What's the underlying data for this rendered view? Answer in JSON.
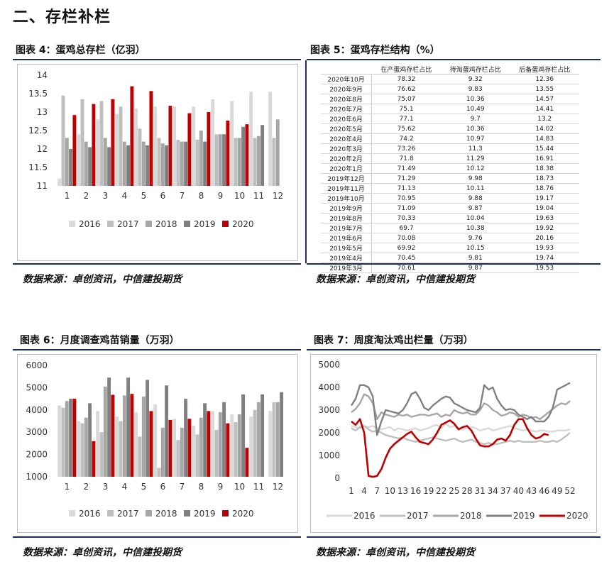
{
  "section_title": "二、存栏补栏",
  "figures": {
    "fig4": {
      "title": "图表 4：蛋鸡总存栏（亿羽）",
      "source": "数据来源：卓创资讯，中信建投期货"
    },
    "fig5": {
      "title": "图表 5：蛋鸡存栏结构（%）",
      "source": "数据来源：卓创资讯，中信建投期货"
    },
    "fig6": {
      "title": "图表 6：月度调查鸡苗销量（万羽）",
      "source": "数据来源：卓创资讯，中信建投期货"
    },
    "fig7": {
      "title": "图表 7：周度淘汰鸡出栏量（万羽）",
      "source": "数据来源：卓创资讯，中信建投期货"
    }
  },
  "colors": {
    "c2016": "#d9d9d9",
    "c2017": "#bfbfbf",
    "c2018": "#a6a6a6",
    "c2019": "#808080",
    "c2020": "#c00000",
    "rule": "#1f2d5a"
  },
  "chart_data": [
    {
      "id": "fig4",
      "type": "bar",
      "categories": [
        "1",
        "2",
        "3",
        "4",
        "5",
        "6",
        "7",
        "8",
        "9",
        "10",
        "11",
        "12"
      ],
      "ylim": [
        11,
        14
      ],
      "yticks": [
        "11",
        "11.5",
        "12",
        "12.5",
        "13",
        "13.5",
        "14"
      ],
      "legend": "bottom",
      "series": [
        {
          "name": "2016",
          "values": [
            11.2,
            12.4,
            12.8,
            12.95,
            13.1,
            13.15,
            13.15,
            13.15,
            13.35,
            13.3,
            13.55,
            13.55
          ]
        },
        {
          "name": "2017",
          "values": [
            13.45,
            13.35,
            13.3,
            13.15,
            12.55,
            12.3,
            12.25,
            12.25,
            12.4,
            12.3,
            12.3,
            12.3
          ]
        },
        {
          "name": "2018",
          "values": [
            12.3,
            12.2,
            12.3,
            12.2,
            12.2,
            12.15,
            12.2,
            12.5,
            12.4,
            12.3,
            12.35,
            12.8
          ]
        },
        {
          "name": "2019",
          "values": [
            12.0,
            12.05,
            12.05,
            12.1,
            12.1,
            12.1,
            12.2,
            12.2,
            12.4,
            12.6,
            12.65,
            null
          ]
        },
        {
          "name": "2020",
          "values": [
            12.92,
            13.22,
            13.35,
            13.7,
            13.57,
            13.17,
            12.97,
            13.0,
            12.77,
            12.67,
            null,
            null
          ]
        }
      ]
    },
    {
      "id": "fig5",
      "type": "table",
      "columns": [
        "",
        "在产蛋鸡存栏占比",
        "待淘蛋鸡存栏占比",
        "后备蛋鸡存栏占比"
      ],
      "rows": [
        [
          "2020年10月",
          "78.32",
          "9.32",
          "12.36"
        ],
        [
          "2020年9月",
          "76.62",
          "9.83",
          "13.55"
        ],
        [
          "2020年8月",
          "75.07",
          "10.36",
          "14.57"
        ],
        [
          "2020年7月",
          "75.1",
          "10.49",
          "14.41"
        ],
        [
          "2020年6月",
          "77.1",
          "9.7",
          "13.2"
        ],
        [
          "2020年5月",
          "75.62",
          "10.36",
          "14.02"
        ],
        [
          "2020年4月",
          "74.2",
          "10.97",
          "14.83"
        ],
        [
          "2020年3月",
          "73.26",
          "11.3",
          "15.44"
        ],
        [
          "2020年2月",
          "71.8",
          "11.29",
          "16.91"
        ],
        [
          "2020年1月",
          "71.49",
          "10.12",
          "18.38"
        ],
        [
          "2019年12月",
          "71.29",
          "9.98",
          "18.73"
        ],
        [
          "2019年11月",
          "71.13",
          "10.11",
          "18.76"
        ],
        [
          "2019年10月",
          "70.95",
          "9.88",
          "19.17"
        ],
        [
          "2019年9月",
          "71.09",
          "9.87",
          "19.04"
        ],
        [
          "2019年8月",
          "70.33",
          "10.04",
          "19.63"
        ],
        [
          "2019年7月",
          "69.7",
          "10.38",
          "19.92"
        ],
        [
          "2019年6月",
          "70.08",
          "9.76",
          "20.16"
        ],
        [
          "2019年5月",
          "69.92",
          "10.15",
          "19.93"
        ],
        [
          "2019年4月",
          "70.45",
          "9.81",
          "19.74"
        ],
        [
          "2019年3月",
          "70.61",
          "9.87",
          "19.53"
        ]
      ]
    },
    {
      "id": "fig6",
      "type": "bar",
      "categories": [
        "1",
        "2",
        "3",
        "4",
        "5",
        "6",
        "7",
        "8",
        "9",
        "10",
        "11",
        "12"
      ],
      "ylim": [
        1000,
        6000
      ],
      "yticks": [
        "1000",
        "2000",
        "3000",
        "4000",
        "5000",
        "6000"
      ],
      "legend": "bottom",
      "series": [
        {
          "name": "2016",
          "values": [
            4200,
            3500,
            3950,
            3700,
            3900,
            4250,
            3600,
            3300,
            3950,
            3800,
            3700,
            3950
          ]
        },
        {
          "name": "2017",
          "values": [
            4100,
            3400,
            3000,
            3500,
            2800,
            1400,
            2650,
            2900,
            3100,
            3450,
            4000,
            4350
          ]
        },
        {
          "name": "2018",
          "values": [
            4400,
            3650,
            5050,
            4650,
            4600,
            3200,
            3200,
            3650,
            3900,
            3800,
            4350,
            4350
          ]
        },
        {
          "name": "2019",
          "values": [
            4500,
            4300,
            5450,
            5450,
            5350,
            5100,
            4500,
            4300,
            4350,
            4700,
            4700,
            4800
          ]
        },
        {
          "name": "2020",
          "values": [
            4500,
            2600,
            4680,
            4720,
            3950,
            3550,
            3600,
            3950,
            3400,
            2300,
            null,
            null
          ]
        }
      ]
    },
    {
      "id": "fig7",
      "type": "line",
      "xticks": [
        "1",
        "4",
        "7",
        "10",
        "13",
        "16",
        "19",
        "22",
        "25",
        "28",
        "31",
        "34",
        "37",
        "40",
        "43",
        "46",
        "49",
        "52"
      ],
      "ylim": [
        0,
        5000
      ],
      "yticks": [
        "0",
        "1000",
        "2000",
        "3000",
        "4000",
        "5000"
      ],
      "legend": "bottom",
      "series": [
        {
          "name": "2016",
          "values": [
            2300,
            2250,
            2200,
            2300,
            2250,
            2300,
            2200,
            2150,
            2200,
            2250,
            2100,
            2200,
            2150,
            2100,
            2150,
            2200,
            2100,
            2150,
            2200,
            2300,
            2350,
            2200,
            2400,
            2250,
            2300,
            2200,
            2150,
            2200,
            2250,
            2200,
            2100,
            2150,
            2200,
            2100,
            2150,
            2200,
            2250,
            2300,
            2200,
            2150,
            2100,
            2150,
            2100,
            2050,
            2100,
            2100,
            2050,
            2050,
            2100,
            2100,
            2100,
            2150
          ]
        },
        {
          "name": "2017",
          "values": [
            2200,
            2100,
            2250,
            2300,
            2150,
            2050,
            2100,
            2000,
            1900,
            1850,
            1800,
            1750,
            1800,
            1700,
            1650,
            1600,
            1650,
            1700,
            1750,
            1800,
            1750,
            1700,
            1650,
            1700,
            1750,
            1650,
            1600,
            1650,
            1700,
            1600,
            1550,
            1500,
            1550,
            1500,
            1500,
            1550,
            1600,
            1650,
            1600,
            1650,
            1600,
            1600,
            1600,
            1600,
            1650,
            1600,
            1600,
            1650,
            1600,
            1700,
            1850,
            2000
          ]
        },
        {
          "name": "2018",
          "values": [
            2900,
            3050,
            3300,
            3700,
            3600,
            3300,
            2600,
            2900,
            2800,
            2750,
            2700,
            2800,
            2750,
            2800,
            2700,
            2750,
            2800,
            2800,
            2750,
            2800,
            2850,
            2700,
            2800,
            2750,
            3000,
            2900,
            2850,
            2900,
            2800,
            2800,
            3000,
            3300,
            3200,
            3000,
            2900,
            2750,
            2800,
            2900,
            2850,
            2700,
            2800,
            2750,
            2650,
            2700,
            2600,
            2750,
            2900,
            3050,
            3200,
            3300,
            3250,
            3400
          ]
        },
        {
          "name": "2019",
          "values": [
            3200,
            3500,
            4100,
            4100,
            4000,
            3600,
            1900,
            2500,
            3000,
            2950,
            2900,
            2850,
            3000,
            3300,
            3700,
            3800,
            3500,
            3100,
            3000,
            3200,
            3350,
            3500,
            3600,
            3550,
            3300,
            3200,
            3100,
            3000,
            2950,
            2900,
            3100,
            4100,
            3900,
            4000,
            3500,
            3200,
            3000,
            3050,
            3000,
            2800,
            2700,
            2600,
            2700,
            2500,
            2500,
            2500,
            2700,
            3100,
            3900,
            4000,
            4100,
            4200
          ]
        },
        {
          "name": "2020",
          "values": [
            2500,
            2350,
            2600,
            2000,
            100,
            60,
            100,
            400,
            900,
            1300,
            1500,
            1650,
            1800,
            1950,
            2050,
            1800,
            1600,
            1550,
            1500,
            1700,
            2000,
            2350,
            2450,
            2550,
            2400,
            2150,
            2250,
            2300,
            2100,
            1750,
            1450,
            1400,
            1400,
            1500,
            1700,
            1750,
            1650,
            1900,
            2350,
            2600,
            2600,
            2200,
            1900,
            1750,
            1800,
            1950,
            1900
          ]
        }
      ]
    }
  ]
}
